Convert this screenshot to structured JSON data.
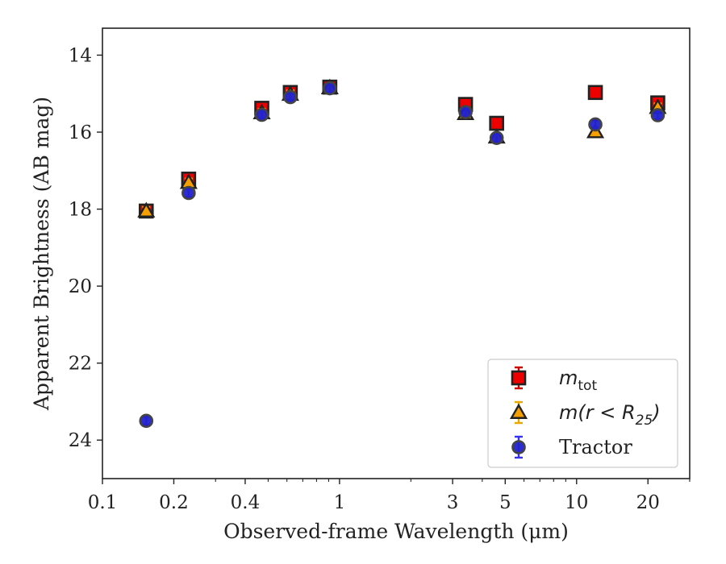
{
  "chart_data": {
    "type": "scatter",
    "xlabel": "Observed-frame Wavelength (μm)",
    "ylabel": "Apparent Brightness (AB mag)",
    "xscale": "log",
    "xlim": [
      0.1,
      30
    ],
    "ylim": [
      25,
      13.3
    ],
    "y_inverted": true,
    "x_ticks": [
      0.1,
      0.2,
      0.4,
      1,
      3,
      5,
      10,
      20
    ],
    "x_tick_labels": [
      "0.1",
      "0.2",
      "0.4",
      "1",
      "3",
      "5",
      "10",
      "20"
    ],
    "y_ticks": [
      14,
      16,
      18,
      20,
      22,
      24
    ],
    "y_tick_labels": [
      "14",
      "16",
      "18",
      "20",
      "22",
      "24"
    ],
    "grid": false,
    "legend_position": "lower right",
    "series": [
      {
        "name": "m_tot",
        "legend_label": {
          "main": "m",
          "sub": "tot"
        },
        "marker": "square",
        "face_color": "#ee0000",
        "edge_color": "#222222",
        "error_color": "#cc0000",
        "x": [
          0.153,
          0.231,
          0.47,
          0.62,
          0.91,
          3.4,
          4.6,
          12.0,
          22.0
        ],
        "y": [
          18.05,
          17.22,
          15.38,
          14.97,
          14.83,
          15.28,
          15.77,
          14.97,
          15.24
        ]
      },
      {
        "name": "m(r < R25)",
        "legend_label": {
          "main": "m(r < R",
          "sub": "25",
          "close": ")"
        },
        "marker": "triangle",
        "face_color": "#f5a000",
        "edge_color": "#222222",
        "error_color": "#e8a800",
        "x": [
          0.153,
          0.231,
          0.47,
          0.62,
          0.91,
          3.4,
          4.6,
          12.0,
          22.0
        ],
        "y": [
          18.05,
          17.31,
          15.5,
          15.02,
          14.85,
          15.52,
          16.13,
          15.99,
          15.36
        ]
      },
      {
        "name": "Tractor",
        "legend_label": {
          "main": "Tractor"
        },
        "marker": "circle",
        "face_color": "#2222cc",
        "edge_color": "#444444",
        "error_color": "#3333ee",
        "x": [
          0.153,
          0.231,
          0.47,
          0.62,
          0.91,
          3.4,
          4.6,
          12.0,
          22.0
        ],
        "y": [
          23.5,
          17.58,
          15.55,
          15.09,
          14.86,
          15.48,
          16.15,
          15.8,
          15.56
        ]
      }
    ]
  }
}
